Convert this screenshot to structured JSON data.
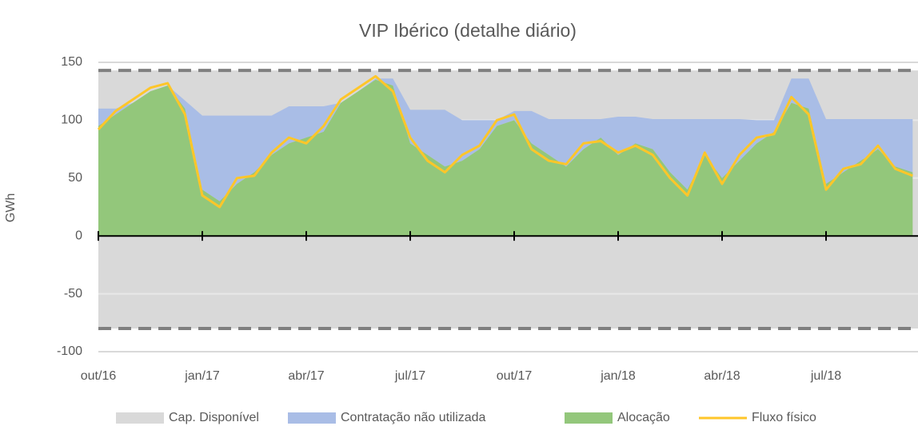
{
  "chart_data": {
    "type": "area",
    "title": "VIP Ibérico (detalhe diário)",
    "y_label": "GWh",
    "categories": [
      "out/16",
      null,
      null,
      null,
      null,
      null,
      "jan/17",
      null,
      null,
      null,
      null,
      null,
      "abr/17",
      null,
      null,
      null,
      null,
      null,
      "jul/17",
      null,
      null,
      null,
      null,
      null,
      "out/17",
      null,
      null,
      null,
      null,
      null,
      "jan/18",
      null,
      null,
      null,
      null,
      null,
      "abr/18",
      null,
      null,
      null,
      null,
      null,
      "jul/18",
      null,
      null,
      null,
      null,
      null
    ],
    "ylim": [
      -100,
      150
    ],
    "yticks": [
      -100,
      -50,
      0,
      50,
      100,
      150
    ],
    "grid": true,
    "series": [
      {
        "name": "Cap. Disponível",
        "color": "#d9d9d9",
        "upper": 143,
        "lower": -80
      },
      {
        "name": "Contratação não utilizada",
        "color": "#a9bde6",
        "values": [
          15,
          5,
          0,
          0,
          0,
          7,
          64,
          74,
          59,
          49,
          34,
          32,
          27,
          22,
          0,
          0,
          1,
          6,
          29,
          39,
          49,
          35,
          25,
          5,
          8,
          28,
          31,
          41,
          26,
          16,
          33,
          23,
          26,
          46,
          61,
          31,
          51,
          36,
          20,
          10,
          21,
          26,
          56,
          46,
          36,
          26,
          41,
          46
        ]
      },
      {
        "name": "Alocação",
        "color": "#93c77b",
        "values": [
          95,
          105,
          115,
          125,
          130,
          110,
          40,
          30,
          45,
          55,
          70,
          80,
          85,
          90,
          115,
          125,
          135,
          130,
          80,
          70,
          60,
          65,
          75,
          95,
          100,
          80,
          70,
          60,
          75,
          85,
          70,
          80,
          75,
          55,
          40,
          70,
          50,
          65,
          80,
          90,
          115,
          110,
          45,
          55,
          65,
          75,
          60,
          55
        ]
      },
      {
        "name": "Fluxo físico",
        "color": "#ffc629",
        "values": [
          92,
          108,
          118,
          128,
          132,
          105,
          35,
          25,
          50,
          52,
          72,
          85,
          80,
          95,
          118,
          128,
          138,
          125,
          85,
          65,
          55,
          70,
          78,
          100,
          105,
          75,
          65,
          62,
          80,
          82,
          72,
          78,
          70,
          50,
          35,
          72,
          45,
          70,
          85,
          88,
          120,
          105,
          40,
          58,
          62,
          78,
          58,
          52
        ]
      }
    ]
  }
}
